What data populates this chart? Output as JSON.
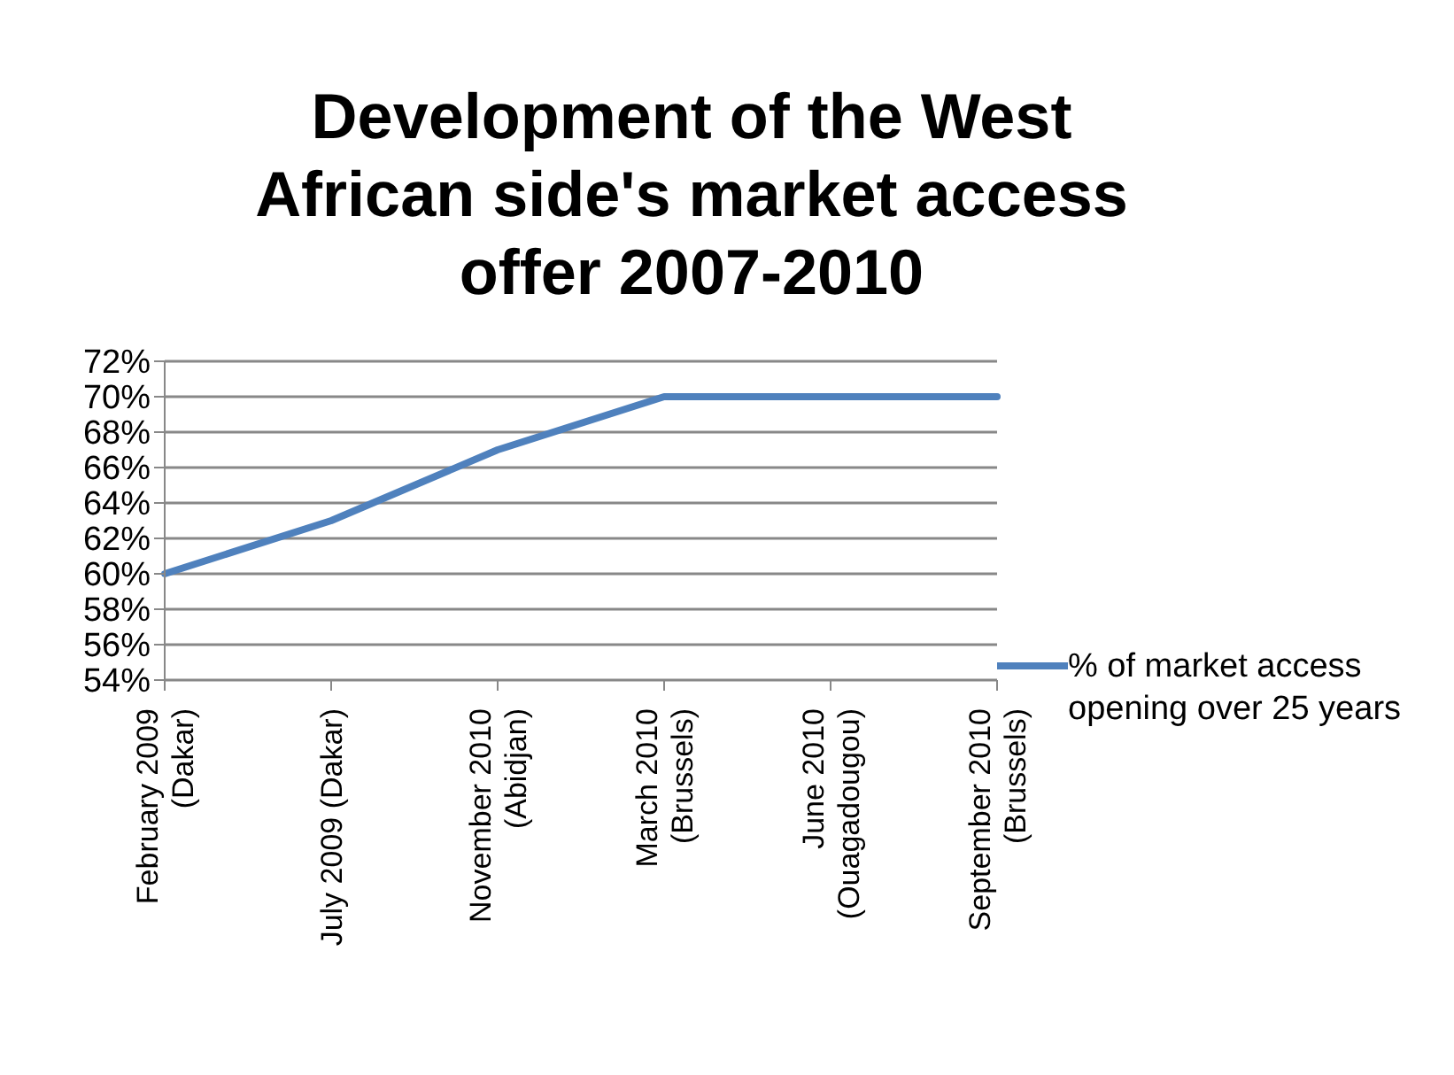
{
  "chart_data": {
    "type": "line",
    "title": "Development of the West African side's market access offer 2007-2010",
    "categories": [
      "February 2009 (Dakar)",
      "July 2009 (Dakar)",
      "November 2010 (Abidjan)",
      "March 2010 (Brussels)",
      "June 2010 (Ouagadougou)",
      "September 2010 (Brussels)"
    ],
    "series": [
      {
        "name": "% of market access opening over 25 years",
        "color": "#4f81bd",
        "values": [
          60,
          63,
          67,
          70,
          70,
          70
        ]
      }
    ],
    "ylim": [
      54,
      72
    ],
    "yticks": [
      {
        "value": 54,
        "label": "54%"
      },
      {
        "value": 56,
        "label": "56%"
      },
      {
        "value": 58,
        "label": "58%"
      },
      {
        "value": 60,
        "label": "60%"
      },
      {
        "value": 62,
        "label": "62%"
      },
      {
        "value": 64,
        "label": "64%"
      },
      {
        "value": 66,
        "label": "66%"
      },
      {
        "value": 68,
        "label": "68%"
      },
      {
        "value": 70,
        "label": "70%"
      },
      {
        "value": 72,
        "label": "72%"
      }
    ],
    "grid": "y",
    "legend": "right",
    "marker": "none",
    "line_style": "solid"
  }
}
